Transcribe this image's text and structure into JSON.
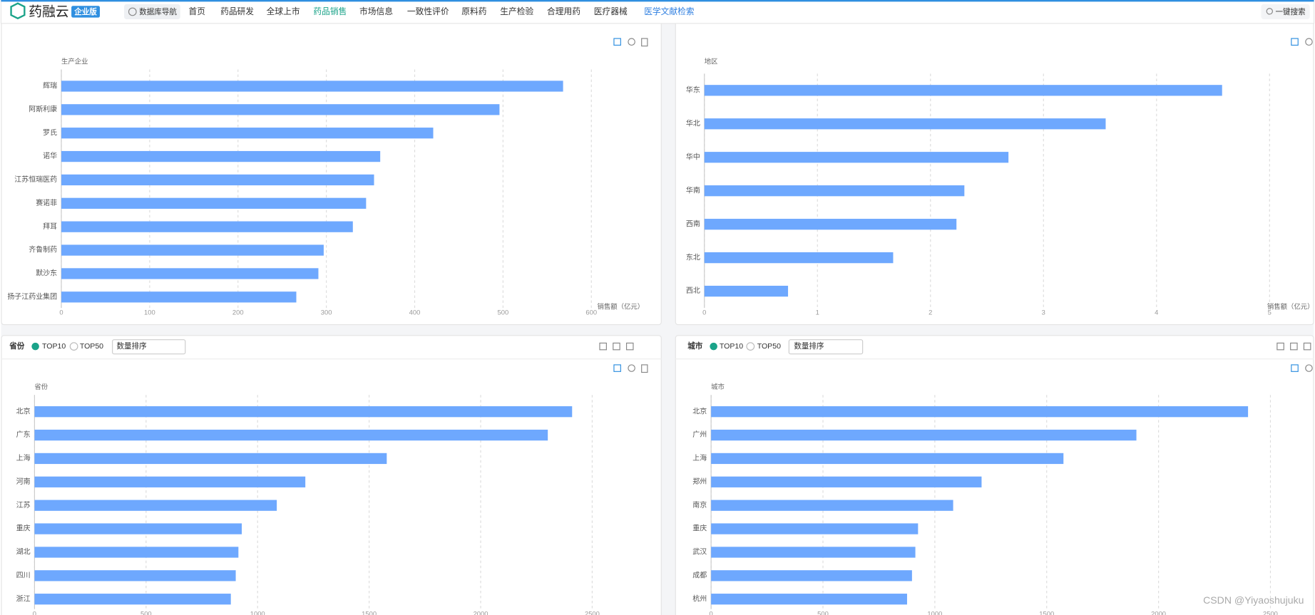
{
  "nav": {
    "logo": "药融云",
    "edition": "企业版",
    "db_nav": "数据库导航",
    "menu": [
      "首页",
      "药品研发",
      "全球上市",
      "药品销售",
      "市场信息",
      "一致性评价",
      "原料药",
      "生产检验",
      "合理用药",
      "医疗器械",
      "医学文献检索"
    ],
    "search": "一键搜索"
  },
  "panel_headers": [
    {
      "title": "省份",
      "options": [
        "TOP10",
        "TOP50"
      ],
      "sort": "数量排序"
    },
    {
      "title": "城市",
      "options": [
        "TOP10",
        "TOP50"
      ],
      "sort": "数量排序"
    }
  ],
  "watermark": "CSDN @Yiyaoshujuku",
  "chart_data": [
    {
      "type": "bar",
      "horizontal": true,
      "y_label": "生产企业",
      "x_label": "销售额（亿元）",
      "categories": [
        "辉瑞",
        "阿斯利康",
        "罗氏",
        "诺华",
        "江苏恒瑞医药",
        "赛诺菲",
        "拜耳",
        "齐鲁制药",
        "默沙东",
        "扬子江药业集团"
      ],
      "values": [
        568,
        496,
        421,
        361,
        354,
        345,
        330,
        297,
        291,
        266
      ],
      "color": "#6ea8fe",
      "xlim": [
        0,
        600
      ],
      "xticks": [
        0,
        100,
        200,
        300,
        400,
        500,
        600
      ],
      "grid": true
    },
    {
      "type": "bar",
      "horizontal": true,
      "y_label": "地区",
      "x_label": "销售额（亿元）",
      "categories": [
        "华东",
        "华北",
        "华中",
        "华南",
        "西南",
        "东北",
        "西北"
      ],
      "values": [
        4.58,
        3.55,
        2.69,
        2.3,
        2.23,
        1.67,
        0.74
      ],
      "color": "#6ea8fe",
      "xlim": [
        0,
        5
      ],
      "xticks": [
        0,
        1,
        2,
        3,
        4,
        5
      ],
      "grid": true
    },
    {
      "type": "bar",
      "horizontal": true,
      "y_label": "省份",
      "categories": [
        "北京",
        "广东",
        "上海",
        "河南",
        "江苏",
        "重庆",
        "湖北",
        "四川",
        "浙江"
      ],
      "values": [
        2410,
        2301,
        1579,
        1214,
        1086,
        929,
        914,
        902,
        880
      ],
      "color": "#6ea8fe",
      "xlim": [
        0,
        2500
      ],
      "xticks": [
        0,
        500,
        1000,
        1500,
        2000,
        2500
      ],
      "grid": true
    },
    {
      "type": "bar",
      "horizontal": true,
      "y_label": "城市",
      "categories": [
        "北京",
        "广州",
        "上海",
        "郑州",
        "南京",
        "重庆",
        "武汉",
        "成都",
        "杭州"
      ],
      "values": [
        2400,
        1901,
        1575,
        1209,
        1082,
        925,
        913,
        898,
        876
      ],
      "color": "#6ea8fe",
      "xlim": [
        0,
        2500
      ],
      "xticks": [
        0,
        500,
        1000,
        1500,
        2000,
        2500
      ],
      "grid": true
    }
  ]
}
